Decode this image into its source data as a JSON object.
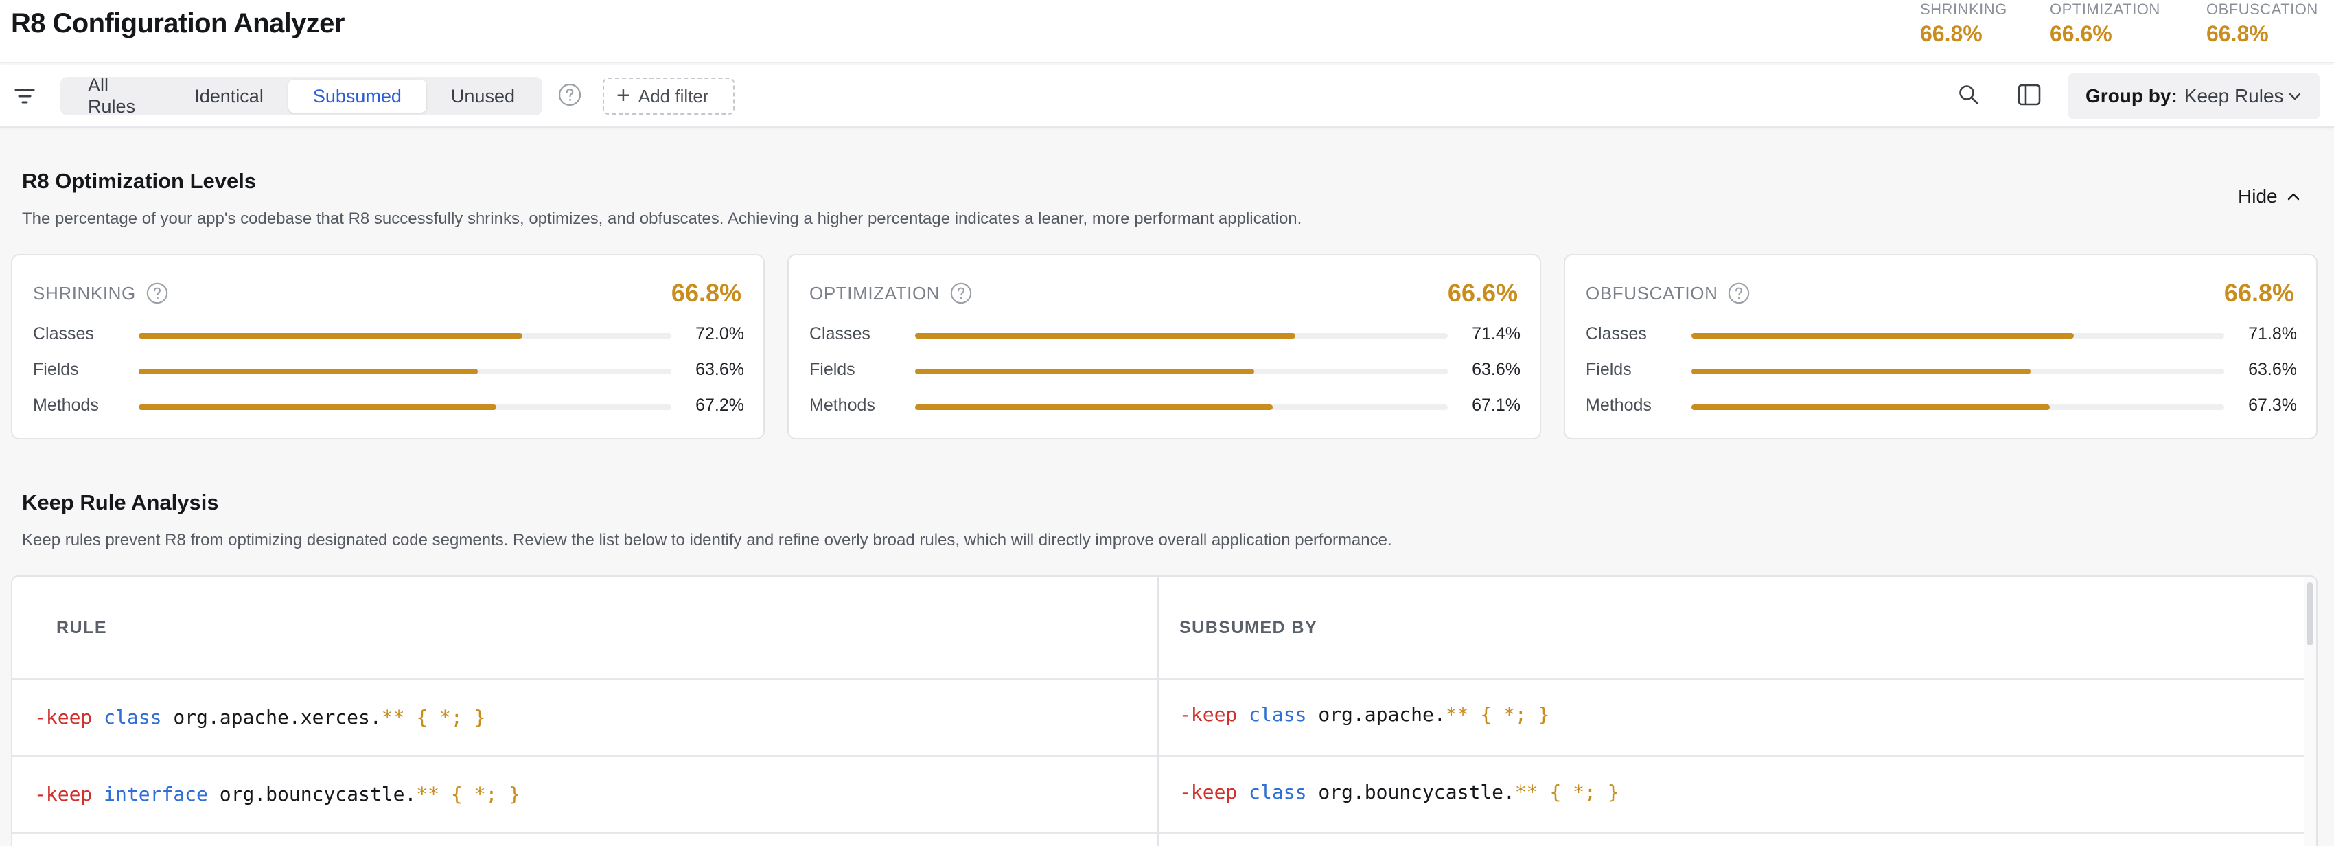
{
  "app": {
    "title": "R8 Configuration Analyzer"
  },
  "header_metrics": [
    {
      "label": "SHRINKING",
      "value": "66.8%"
    },
    {
      "label": "OPTIMIZATION",
      "value": "66.6%"
    },
    {
      "label": "OBFUSCATION",
      "value": "66.8%"
    }
  ],
  "toolbar": {
    "tabs": [
      {
        "label": "All Rules",
        "active": false
      },
      {
        "label": "Identical",
        "active": false
      },
      {
        "label": "Subsumed",
        "active": true
      },
      {
        "label": "Unused",
        "active": false
      }
    ],
    "add_filter_label": "Add filter",
    "group_by_label": "Group by:",
    "group_by_value": "Keep Rules"
  },
  "optimization": {
    "title": "R8 Optimization Levels",
    "description": "The percentage of your app's codebase that R8 successfully shrinks, optimizes, and obfuscates. Achieving a higher percentage indicates a leaner, more performant application.",
    "hide_label": "Hide",
    "cards": [
      {
        "label": "SHRINKING",
        "value": "66.8%",
        "rows": [
          {
            "label": "Classes",
            "value": "72.0%",
            "fraction": 0.72
          },
          {
            "label": "Fields",
            "value": "63.6%",
            "fraction": 0.636
          },
          {
            "label": "Methods",
            "value": "67.2%",
            "fraction": 0.672
          }
        ]
      },
      {
        "label": "OPTIMIZATION",
        "value": "66.6%",
        "rows": [
          {
            "label": "Classes",
            "value": "71.4%",
            "fraction": 0.714
          },
          {
            "label": "Fields",
            "value": "63.6%",
            "fraction": 0.636
          },
          {
            "label": "Methods",
            "value": "67.1%",
            "fraction": 0.671
          }
        ]
      },
      {
        "label": "OBFUSCATION",
        "value": "66.8%",
        "rows": [
          {
            "label": "Classes",
            "value": "71.8%",
            "fraction": 0.718
          },
          {
            "label": "Fields",
            "value": "63.6%",
            "fraction": 0.636
          },
          {
            "label": "Methods",
            "value": "67.3%",
            "fraction": 0.673
          }
        ]
      }
    ]
  },
  "keep_rules": {
    "title": "Keep Rule Analysis",
    "description": "Keep rules prevent R8 from optimizing designated code segments. Review the list below to identify and refine overly broad rules, which will directly improve overall application performance.",
    "columns": [
      "RULE",
      "SUBSUMED BY"
    ],
    "rows": [
      {
        "rule": {
          "keep": "-keep",
          "type": "class",
          "pkg": "org.apache.xerces.",
          "glob": "** { *; }"
        },
        "subsumed_by": {
          "keep": "-keep",
          "type": "class",
          "pkg": "org.apache.",
          "glob": "** { *; }"
        }
      },
      {
        "rule": {
          "keep": "-keep",
          "type": "interface",
          "pkg": "org.bouncycastle.",
          "glob": "** { *; }"
        },
        "subsumed_by": {
          "keep": "-keep",
          "type": "class",
          "pkg": "org.bouncycastle.",
          "glob": "** { *; }"
        }
      }
    ]
  },
  "colors": {
    "accent": "#c98d1e",
    "active_tab": "#2b5bd7",
    "keyword_red": "#d0312d",
    "keyword_blue": "#2f6fd6"
  },
  "icons": [
    "filter-icon",
    "help-icon",
    "plus-icon",
    "search-icon",
    "panel-icon",
    "chevron-down-icon",
    "chevron-up-icon"
  ]
}
